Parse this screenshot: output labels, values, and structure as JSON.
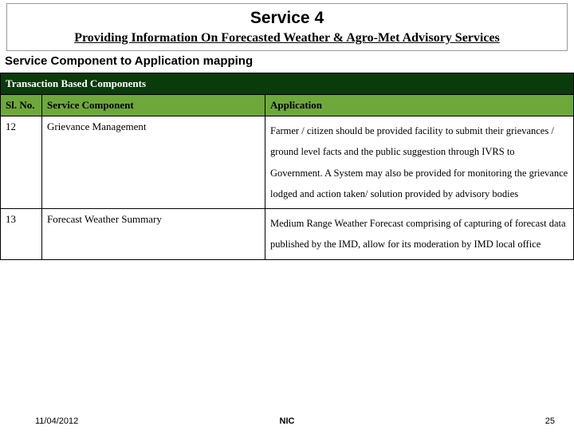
{
  "header": {
    "title": "Service 4",
    "subtitle": "Providing Information On Forecasted Weather & Agro-Met Advisory Services"
  },
  "section_label": "Service Component to Application mapping",
  "table": {
    "super_header": "Transaction Based Components",
    "columns": [
      "Sl. No.",
      "Service Component",
      "Application"
    ],
    "rows": [
      {
        "slno": "12",
        "component": "Grievance Management",
        "application": "Farmer / citizen should be provided facility to submit their grievances / ground level facts and the public suggestion through IVRS to Government. A System may also be provided for monitoring the grievance lodged and action taken/ solution provided by advisory bodies"
      },
      {
        "slno": "13",
        "component": "Forecast Weather Summary",
        "application": "Medium Range Weather Forecast comprising of capturing of forecast data published by the IMD, allow for its moderation by IMD local office"
      }
    ]
  },
  "footer": {
    "date": "11/04/2012",
    "center": "NIC",
    "page": "25"
  },
  "colors": {
    "super_header_bg": "#0a3b0a",
    "super_header_text": "#ffffff",
    "col_header_bg": "#6ea83b",
    "border": "#000000",
    "title_border": "#999999"
  }
}
